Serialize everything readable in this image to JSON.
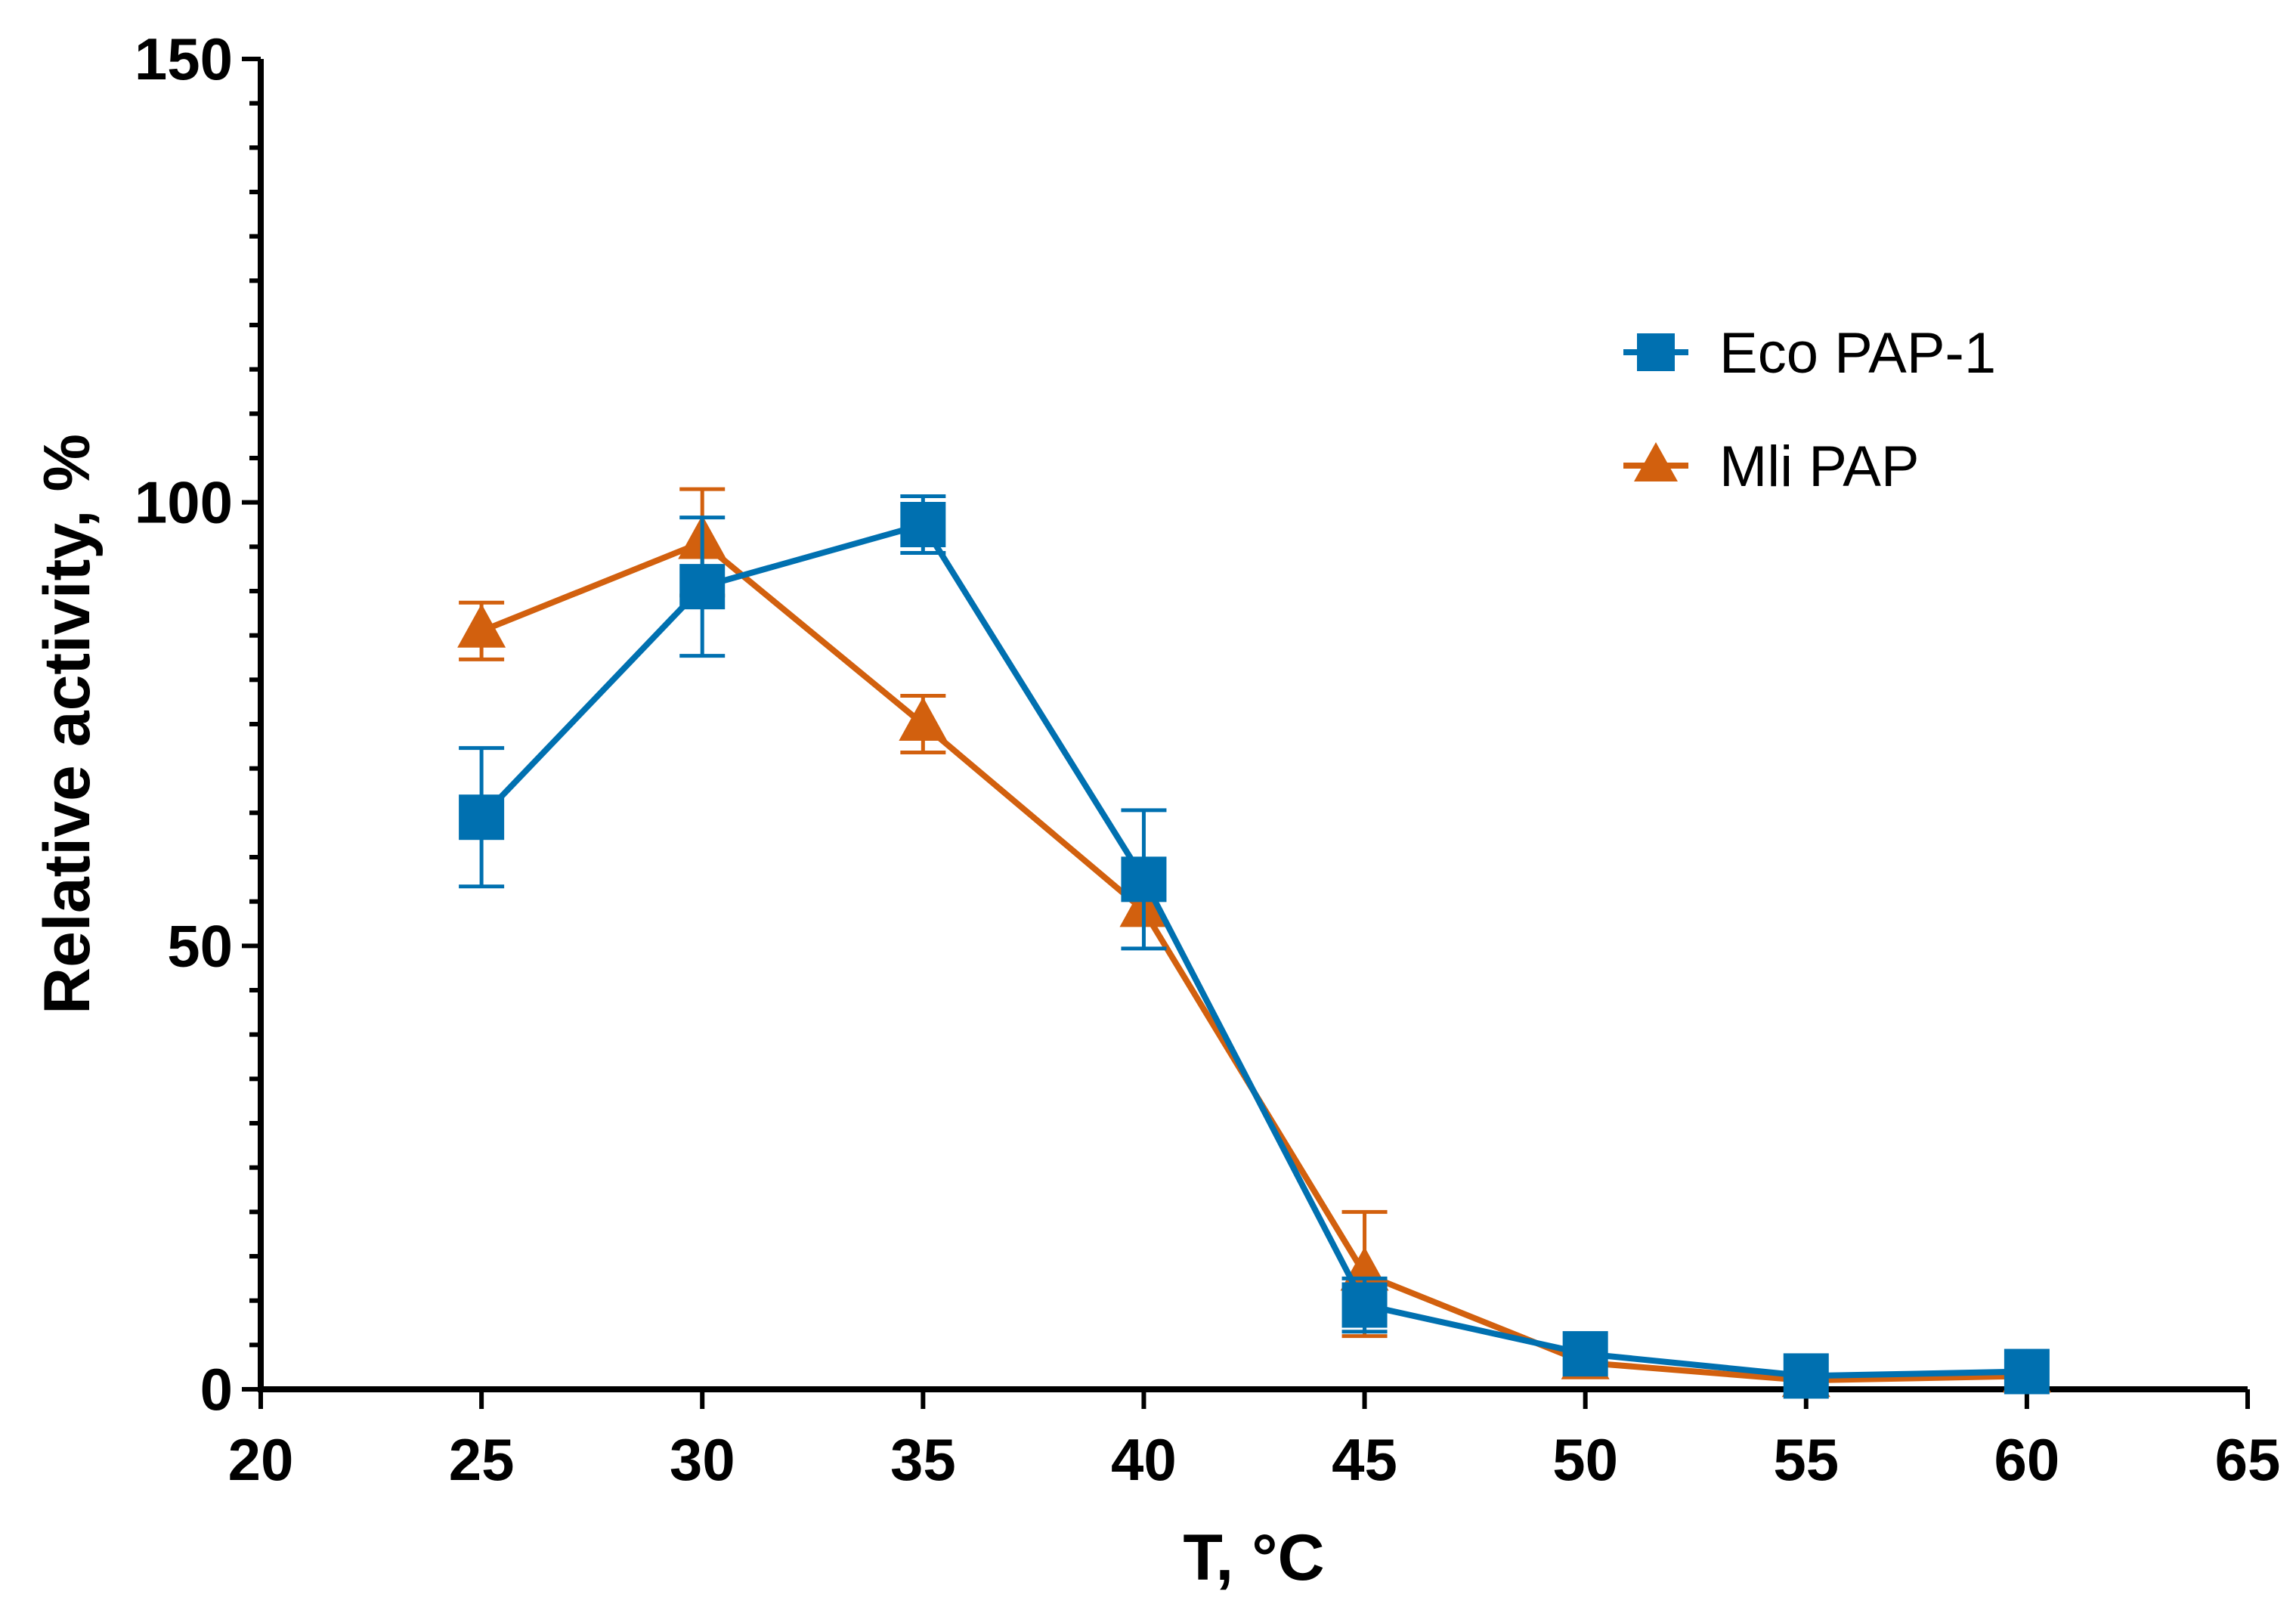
{
  "chart_data": {
    "type": "line",
    "title": "",
    "xlabel": "T, °C",
    "ylabel": "Relative activity, %",
    "xlim": [
      20,
      65
    ],
    "ylim": [
      0,
      150
    ],
    "xticks": [
      20,
      25,
      30,
      35,
      40,
      45,
      50,
      55,
      60,
      65
    ],
    "xtick_labels": [
      "20",
      "25",
      "30",
      "35",
      "40",
      "45",
      "50",
      "55",
      "60",
      "65"
    ],
    "yticks": [
      0,
      50,
      100,
      150
    ],
    "ytick_labels": [
      "0",
      "50",
      "100",
      "150"
    ],
    "y_minor_step": 5,
    "grid": false,
    "legend_position": "top-right",
    "series": [
      {
        "name": "Eco PAP-1",
        "color": "#0070b0",
        "marker": "square",
        "x": [
          25,
          30,
          35,
          40,
          45,
          50,
          55,
          60
        ],
        "y": [
          64.5,
          90.5,
          97.5,
          57.5,
          9.5,
          4.0,
          1.5,
          2.0
        ],
        "err": [
          7.8,
          7.8,
          3.2,
          7.8,
          3.0,
          0,
          0,
          0
        ]
      },
      {
        "name": "Mli PAP",
        "color": "#d2600e",
        "marker": "triangle",
        "x": [
          25,
          30,
          35,
          40,
          45,
          50,
          55,
          60
        ],
        "y": [
          85.5,
          95.5,
          75.0,
          54.0,
          13.0,
          3.0,
          1.0,
          1.5
        ],
        "err": [
          3.2,
          6.0,
          3.2,
          0,
          7.0,
          0,
          0,
          0
        ]
      }
    ]
  }
}
